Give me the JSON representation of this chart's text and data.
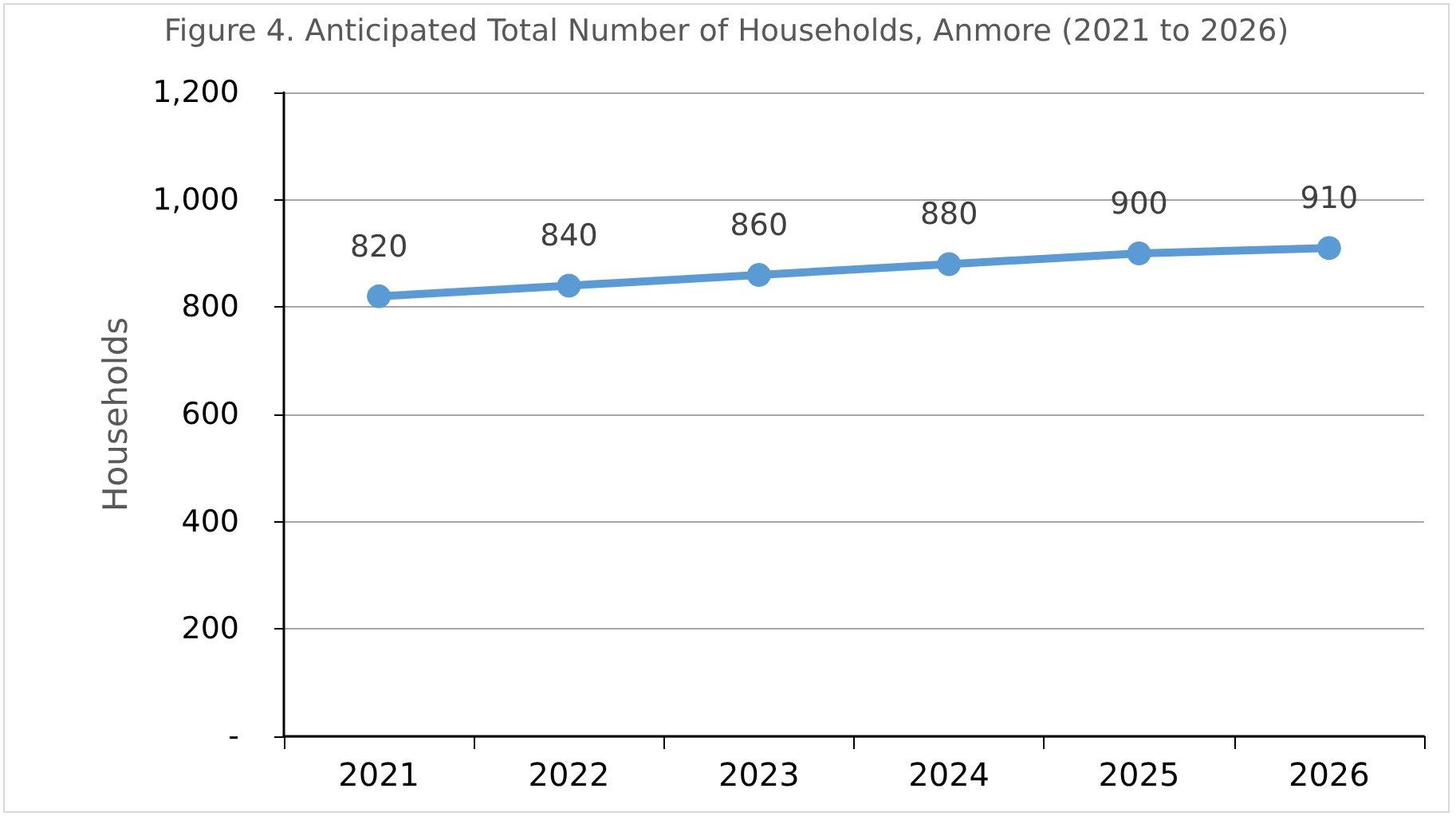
{
  "chart_data": {
    "type": "line",
    "title": "Figure 4. Anticipated Total Number of Households, Anmore (2021 to 2026)",
    "ylabel": "Households",
    "categories": [
      "2021",
      "2022",
      "2023",
      "2024",
      "2025",
      "2026"
    ],
    "series": [
      {
        "color": "#5b9bd5",
        "values": [
          820,
          840,
          860,
          880,
          900,
          910
        ]
      }
    ],
    "ylim": [
      0,
      1200
    ],
    "yticks": [
      {
        "value": 0,
        "label": "-"
      },
      200,
      400,
      600,
      800,
      {
        "value": 1000,
        "label": "1,000"
      },
      {
        "value": 1200,
        "label": "1,200"
      }
    ],
    "grid": "y",
    "marker": "circle",
    "line_style": "solid",
    "data_labels": true
  }
}
